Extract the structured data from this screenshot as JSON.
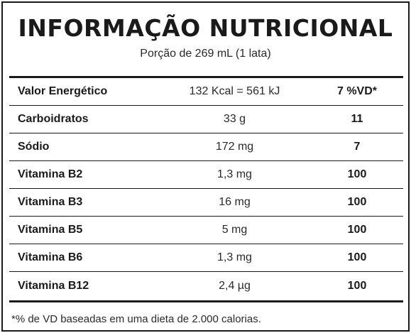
{
  "label": {
    "title": "INFORMAÇÃO NUTRICIONAL",
    "serving": "Porção de 269 mL (1 lata)",
    "rows": [
      {
        "name": "Valor Energético",
        "amount": "132 Kcal = 561 kJ",
        "vd": "7 %VD*"
      },
      {
        "name": "Carboidratos",
        "amount": "33 g",
        "vd": "11"
      },
      {
        "name": "Sódio",
        "amount": "172 mg",
        "vd": "7"
      },
      {
        "name": "Vitamina B2",
        "amount": "1,3 mg",
        "vd": "100"
      },
      {
        "name": "Vitamina B3",
        "amount": "16 mg",
        "vd": "100"
      },
      {
        "name": "Vitamina B5",
        "amount": "5 mg",
        "vd": "100"
      },
      {
        "name": "Vitamina B6",
        "amount": "1,3 mg",
        "vd": "100"
      },
      {
        "name": "Vitamina B12",
        "amount": "2,4 µg",
        "vd": "100"
      }
    ],
    "footnote": "*% de VD baseadas em uma dieta de 2.000 calorias."
  }
}
